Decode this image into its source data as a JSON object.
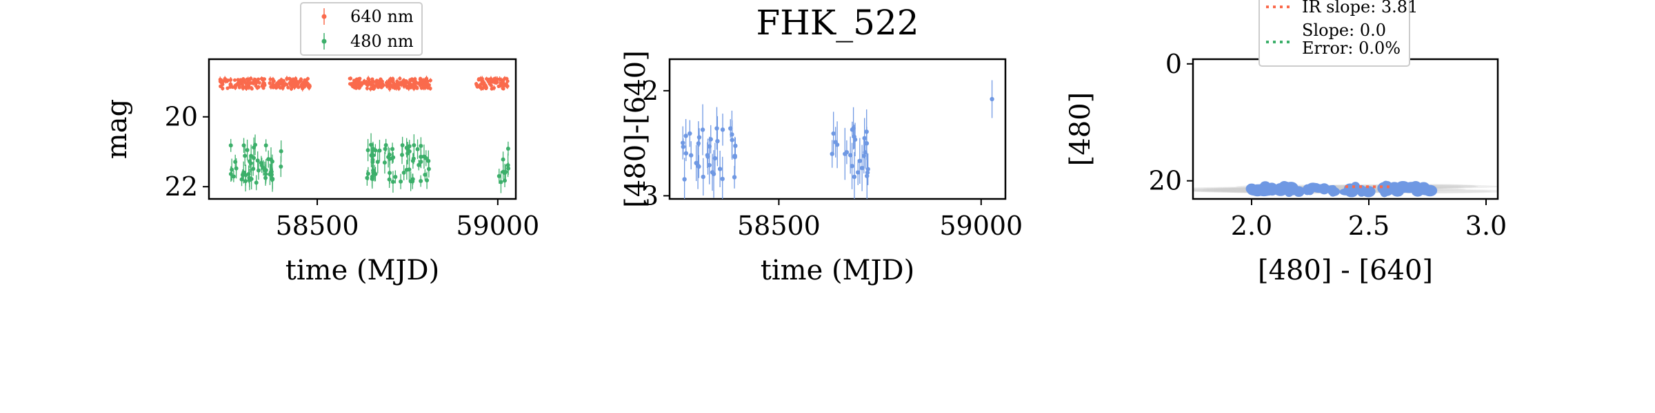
{
  "colors": {
    "red": "#fa6a4c",
    "green": "#3caf6a",
    "blue": "#6f98e3",
    "ellipse": "#cfcfcf"
  },
  "chart_data": [
    {
      "type": "scatter",
      "title": "",
      "xlabel": "time (MJD)",
      "ylabel": "mag",
      "xlim": [
        58200,
        59050
      ],
      "ylim": [
        22.35,
        18.35
      ],
      "y_inverted": true,
      "xticks": [
        "58500",
        "59000"
      ],
      "yticks": [
        "20",
        "22"
      ],
      "legend": {
        "placement": "top-center (above axes)",
        "entries": [
          "640 nm",
          "480 nm"
        ]
      },
      "series": [
        {
          "name": "640 nm",
          "color": "red",
          "segments": [
            [
              58230,
              58480
            ],
            [
              58590,
              58820
            ],
            [
              58940,
              59030
            ]
          ],
          "mag_range": [
            18.9,
            19.2
          ],
          "approx_points": 450,
          "err": 0.06
        },
        {
          "name": "480 nm",
          "color": "green",
          "segments": [
            [
              58260,
              58400
            ],
            [
              58630,
              58810
            ],
            [
              59000,
              59030
            ]
          ],
          "mag_range": [
            20.8,
            21.9
          ],
          "approx_points": 120,
          "err": 0.25
        }
      ]
    },
    {
      "type": "scatter",
      "title": "FHK_522",
      "xlabel": "time (MJD)",
      "ylabel": "[480]-[640]",
      "xlim": [
        58230,
        59060
      ],
      "ylim": [
        3.03,
        1.7
      ],
      "y_inverted": true,
      "xticks": [
        "58500",
        "59000"
      ],
      "yticks": [
        "2",
        "3"
      ],
      "series": [
        {
          "name": "",
          "color": "blue",
          "segments": [
            [
              58260,
              58400
            ],
            [
              58630,
              58730
            ],
            [
              59020,
              59030
            ]
          ],
          "color_range": [
            2.35,
            2.85
          ],
          "approx_points": 60,
          "err": 0.18
        }
      ]
    },
    {
      "type": "scatter",
      "title": "",
      "xlabel": "[480] - [640]",
      "ylabel": "[480]",
      "xlim": [
        1.75,
        3.05
      ],
      "ylim": [
        23.1,
        -0.8
      ],
      "y_inverted": true,
      "xticks": [
        "2.0",
        "2.5",
        "3.0"
      ],
      "yticks": [
        "0",
        "20"
      ],
      "legend": {
        "placement": "top (above axes)",
        "entries": [
          "IR slope: 3.81",
          "Slope: 0.0\nError: 0.0%"
        ]
      },
      "lines": [
        {
          "name": "IR slope: 3.81",
          "color": "red",
          "style": "dotted",
          "slope": 3.81,
          "x_range": [
            2.4,
            2.6
          ]
        },
        {
          "name": "Slope: 0.0\nError: 0.0%",
          "color": "green",
          "style": "dotted",
          "slope": 0.0
        }
      ],
      "series": [
        {
          "name": "",
          "color": "blue",
          "x_range": [
            2.0,
            2.78
          ],
          "mag_range": [
            20.9,
            21.9
          ],
          "approx_points": 60
        }
      ]
    }
  ]
}
